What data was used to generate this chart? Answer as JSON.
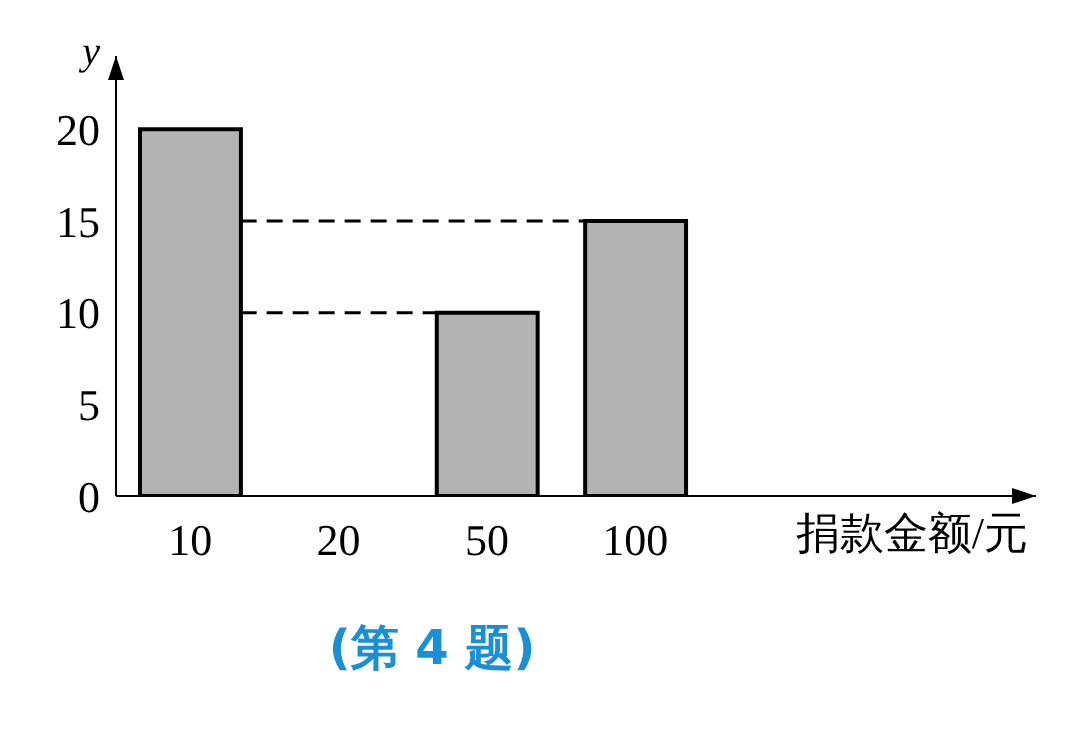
{
  "chart_data": {
    "type": "bar",
    "categories": [
      "10",
      "20",
      "50",
      "100"
    ],
    "values": [
      20,
      null,
      10,
      15
    ],
    "color": "#b3b3b3",
    "xlabel": "捐款金额/元",
    "ylabel": "y",
    "ylim": [
      0,
      24
    ],
    "yticks": [
      0,
      5,
      10,
      15,
      20
    ],
    "grid": false,
    "ref_lines": [
      {
        "axis": "y",
        "value": 15,
        "line_style": "dashed",
        "color": "#000000"
      },
      {
        "axis": "y",
        "value": 10,
        "line_style": "dashed",
        "color": "#000000"
      }
    ],
    "annotations": [
      "(第 4 题)"
    ]
  }
}
